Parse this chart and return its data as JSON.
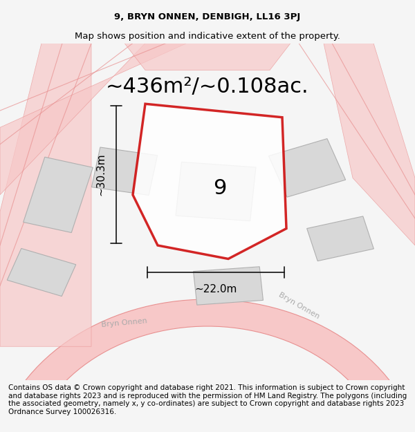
{
  "title_line1": "9, BRYN ONNEN, DENBIGH, LL16 3PJ",
  "title_line2": "Map shows position and indicative extent of the property.",
  "area_label": "~436m²/~0.108ac.",
  "property_number": "9",
  "dim_vertical": "~30.3m",
  "dim_horizontal": "~22.0m",
  "footer_text": "Contains OS data © Crown copyright and database right 2021. This information is subject to Crown copyright and database rights 2023 and is reproduced with the permission of HM Land Registry. The polygons (including the associated geometry, namely x, y co-ordinates) are subject to Crown copyright and database rights 2023 Ordnance Survey 100026316.",
  "bg_color": "#f5f5f5",
  "map_bg": "#ffffff",
  "road_color": "#f7c8c8",
  "road_line_color": "#e89090",
  "building_color": "#d8d8d8",
  "building_edge_color": "#b0b0b0",
  "property_fill": "#ffffff",
  "property_edge": "#cc0000",
  "dim_line_color": "#111111",
  "road_label_color": "#aaaaaa",
  "title_fontsize": 9.5,
  "area_fontsize": 22,
  "number_fontsize": 22,
  "dim_fontsize": 11,
  "footer_fontsize": 7.5
}
